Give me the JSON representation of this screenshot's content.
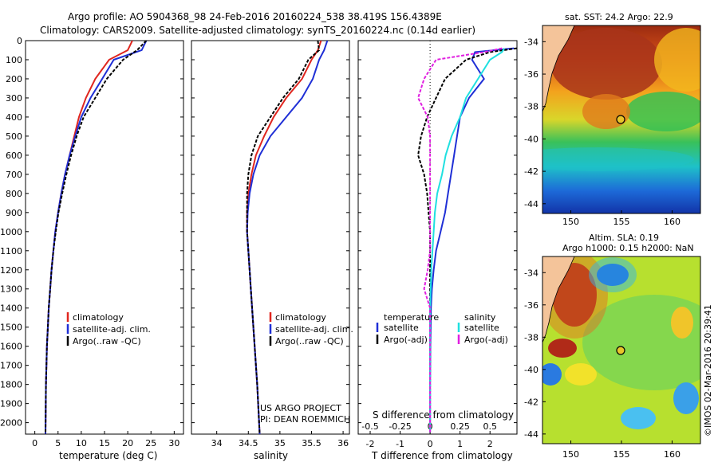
{
  "header": {
    "line1": "Argo profile: AO 5904368_98 24-Feb-2016 20160224_538 38.419S 156.4389E",
    "line2": "Climatology: CARS2009. Satellite-adjusted climatology: synTS_20160224.nc (0.14d earlier)"
  },
  "credit": "US ARGO PROJECT",
  "pi": "PI: DEAN ROEMMICH",
  "watermark": "©IMOS 02-Mar-2016 20:39:41",
  "colors": {
    "red": "#e0261f",
    "blue": "#1f2fd6",
    "black": "#000000",
    "cyan": "#1fe0e0",
    "magenta": "#e01fe0",
    "land": "#f4c49a"
  },
  "y_ticks": [
    "0",
    "100",
    "200",
    "300",
    "400",
    "500",
    "600",
    "700",
    "800",
    "900",
    "1000",
    "1100",
    "1200",
    "1300",
    "1400",
    "1500",
    "1600",
    "1700",
    "1800",
    "1900",
    "2000"
  ],
  "chart_data": [
    {
      "type": "line",
      "xlabel": "temperature (deg C)",
      "xlim": [
        -2,
        32
      ],
      "x_ticks": [
        "0",
        "5",
        "10",
        "15",
        "20",
        "25",
        "30"
      ],
      "ylim": [
        2060,
        0
      ],
      "legend": [
        "climatology",
        "satellite-adj. clim.",
        "Argo(..raw -QC)"
      ],
      "legend_placement": "lower-middle",
      "series": [
        {
          "name": "climatology",
          "color": "red",
          "x": [
            21,
            20,
            16,
            13,
            11,
            9.5,
            8.5,
            7.5,
            6.5,
            5.7,
            5,
            4.4,
            4,
            3.6,
            3.3,
            3,
            2.8,
            2.6,
            2.5,
            2.4,
            2.3
          ],
          "y": [
            0,
            50,
            100,
            200,
            300,
            400,
            500,
            600,
            700,
            800,
            900,
            1000,
            1100,
            1200,
            1300,
            1400,
            1500,
            1600,
            1700,
            1800,
            2060
          ]
        },
        {
          "name": "satellite-adj. clim.",
          "color": "blue",
          "x": [
            24,
            23,
            17,
            14.5,
            12,
            10,
            8.7,
            7.5,
            6.5,
            5.7,
            5,
            4.4,
            4,
            3.6,
            3.3,
            3,
            2.8,
            2.6,
            2.5,
            2.4,
            2.3
          ],
          "y": [
            0,
            50,
            100,
            200,
            300,
            400,
            500,
            600,
            700,
            800,
            900,
            1000,
            1100,
            1200,
            1300,
            1400,
            1500,
            1600,
            1700,
            1800,
            2060
          ]
        },
        {
          "name": "Argo(..raw -QC)",
          "color": "black",
          "x": [
            24,
            22,
            19,
            15.5,
            13,
            10.5,
            9,
            7.8,
            6.8,
            5.9,
            5.1,
            4.5,
            4,
            3.6,
            3.3,
            3,
            2.8,
            2.6,
            2.5,
            2.4,
            2.3
          ],
          "y": [
            0,
            50,
            100,
            200,
            300,
            400,
            500,
            600,
            700,
            800,
            900,
            1000,
            1100,
            1200,
            1300,
            1400,
            1500,
            1600,
            1700,
            1800,
            2060
          ]
        }
      ]
    },
    {
      "type": "line",
      "xlabel": "salinity",
      "xlim": [
        33.6,
        36.1
      ],
      "x_ticks": [
        "34",
        "34.5",
        "35",
        "35.5",
        "36"
      ],
      "ylim": [
        2060,
        0
      ],
      "legend": [
        "climatology",
        "satellite-adj. clim.",
        "Argo(..raw -QC)"
      ],
      "legend_placement": "lower-middle",
      "series": [
        {
          "name": "climatology",
          "color": "red",
          "x": [
            35.65,
            35.6,
            35.5,
            35.35,
            35.1,
            34.9,
            34.75,
            34.62,
            34.55,
            34.5,
            34.48,
            34.48,
            34.5,
            34.52,
            34.54,
            34.56,
            34.58,
            34.6,
            34.62,
            34.64,
            34.68
          ],
          "y": [
            0,
            50,
            100,
            200,
            300,
            400,
            500,
            600,
            700,
            800,
            900,
            1000,
            1100,
            1200,
            1300,
            1400,
            1500,
            1600,
            1700,
            1800,
            2060
          ]
        },
        {
          "name": "satellite-adj. clim.",
          "color": "blue",
          "x": [
            35.75,
            35.7,
            35.62,
            35.52,
            35.35,
            35.1,
            34.85,
            34.68,
            34.58,
            34.52,
            34.49,
            34.48,
            34.5,
            34.52,
            34.54,
            34.56,
            34.58,
            34.6,
            34.62,
            34.64,
            34.68
          ],
          "y": [
            0,
            50,
            100,
            200,
            300,
            400,
            500,
            600,
            700,
            800,
            900,
            1000,
            1100,
            1200,
            1300,
            1400,
            1500,
            1600,
            1700,
            1800,
            2060
          ]
        },
        {
          "name": "Argo(..raw -QC)",
          "color": "black",
          "x": [
            35.6,
            35.62,
            35.45,
            35.3,
            35.05,
            34.85,
            34.65,
            34.55,
            34.5,
            34.48,
            34.48,
            34.48,
            34.5,
            34.52,
            34.54,
            34.56,
            34.58,
            34.6,
            34.62,
            34.64,
            34.68
          ],
          "y": [
            0,
            50,
            100,
            200,
            300,
            400,
            500,
            600,
            700,
            800,
            900,
            1000,
            1100,
            1200,
            1300,
            1400,
            1500,
            1600,
            1700,
            1800,
            2060
          ]
        }
      ]
    },
    {
      "type": "line",
      "xlabel": "T difference from climatology",
      "xlabel_top": "S difference from climatology",
      "xlim": [
        -2.4,
        2.9
      ],
      "x_ticks": [
        "-2",
        "-1",
        "0",
        "1",
        "2"
      ],
      "x_ticks_top": [
        "-0.5",
        "-0.25",
        "0",
        "0.25",
        "0.5"
      ],
      "ylim": [
        2060,
        0
      ],
      "legend_t_title": "temperature",
      "legend_s_title": "salinity",
      "legend": [
        "satellite",
        "Argo(-adj)",
        "satellite",
        "Argo(-adj)"
      ],
      "series": [
        {
          "name": "satellite",
          "group": "temperature",
          "color": "blue",
          "x": [
            2.8,
            1.5,
            1.4,
            1.8,
            1.3,
            1.0,
            0.9,
            0.8,
            0.7,
            0.6,
            0.5,
            0.35,
            0.2,
            0.12,
            0.06,
            0.03,
            0.02,
            0.01,
            0.0,
            0.0
          ],
          "y": [
            40,
            60,
            100,
            200,
            300,
            400,
            500,
            600,
            700,
            800,
            900,
            1000,
            1100,
            1200,
            1300,
            1400,
            1500,
            1600,
            1800,
            2050
          ]
        },
        {
          "name": "Argo(-adj)",
          "group": "temperature",
          "color": "black",
          "x": [
            2.9,
            2.0,
            1.2,
            0.5,
            0.2,
            -0.1,
            -0.3,
            -0.4,
            -0.2,
            -0.1,
            -0.05,
            0.0,
            0.0,
            0.0,
            0.0,
            0.0,
            0.0,
            0.0,
            0.0,
            0.0
          ],
          "y": [
            40,
            60,
            100,
            200,
            300,
            400,
            500,
            600,
            700,
            800,
            900,
            1000,
            1100,
            1200,
            1300,
            1400,
            1500,
            1600,
            1800,
            2050
          ]
        },
        {
          "name": "satellite",
          "group": "salinity",
          "color": "cyan",
          "x": [
            0.62,
            0.6,
            0.5,
            0.4,
            0.3,
            0.25,
            0.18,
            0.13,
            0.1,
            0.06,
            0.04,
            0.03,
            0.02,
            0.01,
            0.005,
            0.0,
            0.0,
            0.0,
            0.0,
            0.0
          ],
          "y": [
            40,
            60,
            100,
            200,
            300,
            400,
            500,
            600,
            700,
            800,
            900,
            1000,
            1100,
            1200,
            1300,
            1400,
            1500,
            1600,
            1800,
            2050
          ]
        },
        {
          "name": "Argo(-adj)",
          "group": "salinity",
          "color": "magenta",
          "x": [
            0.6,
            0.45,
            0.05,
            -0.05,
            -0.1,
            -0.02,
            0.0,
            0.0,
            0.0,
            0.0,
            0.0,
            0.0,
            0.0,
            -0.02,
            -0.05,
            0.0,
            0.0,
            0.0,
            0.0,
            0.0
          ],
          "y": [
            40,
            60,
            100,
            200,
            300,
            400,
            500,
            600,
            700,
            800,
            900,
            1000,
            1100,
            1200,
            1300,
            1400,
            1500,
            1600,
            1800,
            2050
          ]
        }
      ]
    },
    {
      "type": "heatmap",
      "title": "sat. SST: 24.2  Argo: 22.9",
      "x_ticks": [
        "150",
        "155",
        "160"
      ],
      "y_ticks": [
        "-34",
        "-36",
        "-38",
        "-40",
        "-42",
        "-44"
      ],
      "argo_position": {
        "lon": 156.44,
        "lat": -38.42
      }
    },
    {
      "type": "heatmap",
      "title": "Altim. SLA: 0.19",
      "subtitle": "Argo h1000: 0.15 h2000: NaN",
      "x_ticks": [
        "150",
        "155",
        "160"
      ],
      "y_ticks": [
        "-34",
        "-36",
        "-38",
        "-40",
        "-42",
        "-44"
      ],
      "argo_position": {
        "lon": 156.44,
        "lat": -38.42
      }
    }
  ]
}
